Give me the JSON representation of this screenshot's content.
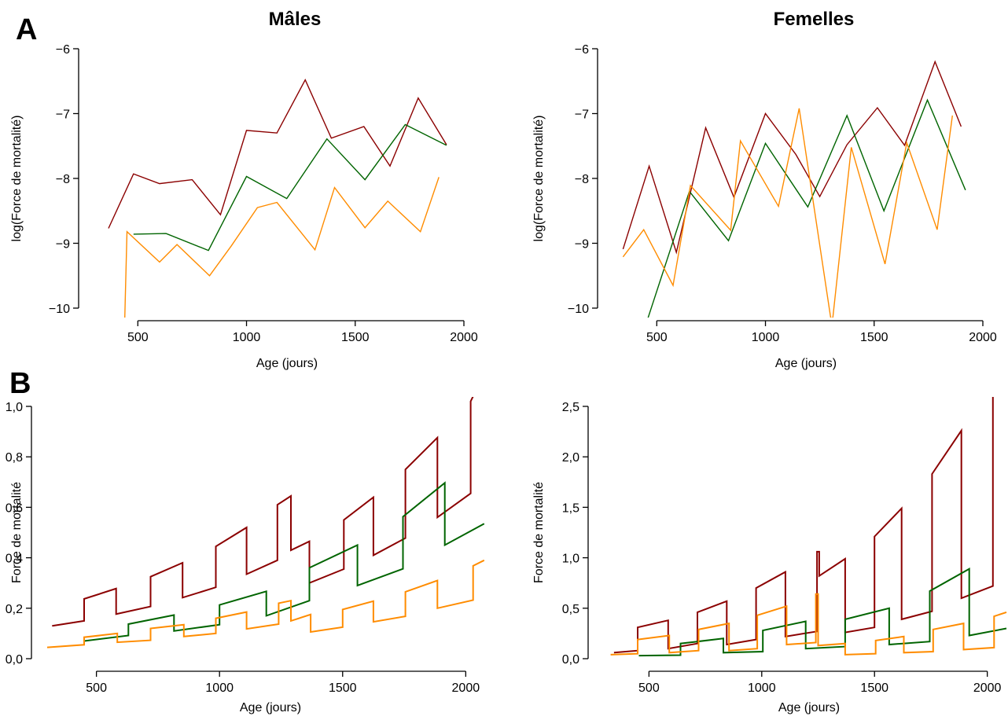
{
  "figure": {
    "column_titles": [
      "Mâles",
      "Femelles"
    ],
    "row_labels": [
      "A",
      "B"
    ]
  },
  "chart_data": [
    {
      "type": "line",
      "panel": "A",
      "title": "Mâles",
      "xlabel": "Age (jours)",
      "ylabel": "log(Force de mortalité)",
      "xlim": [
        300,
        2000
      ],
      "ylim": [
        -10,
        -6
      ],
      "xticks": [
        500,
        1000,
        1500,
        2000
      ],
      "yticks": [
        -10,
        -9,
        -8,
        -7,
        -6
      ],
      "series": [
        {
          "color": "#8B0000",
          "x": [
            365,
            480,
            600,
            750,
            880,
            1000,
            1140,
            1270,
            1390,
            1540,
            1660,
            1790,
            1920
          ],
          "y": [
            -8.77,
            -7.93,
            -8.08,
            -8.02,
            -8.56,
            -7.26,
            -7.3,
            -6.48,
            -7.38,
            -7.2,
            -7.81,
            -6.76,
            -7.48
          ]
        },
        {
          "color": "#006400",
          "x": [
            480,
            630,
            825,
            1000,
            1185,
            1370,
            1545,
            1730,
            1920
          ],
          "y": [
            -8.86,
            -8.85,
            -9.11,
            -7.97,
            -8.31,
            -7.39,
            -8.02,
            -7.17,
            -7.49
          ]
        },
        {
          "color": "#FF8C00",
          "x": [
            440,
            450,
            600,
            680,
            830,
            930,
            1050,
            1140,
            1315,
            1405,
            1545,
            1650,
            1800,
            1885
          ],
          "y": [
            -10.15,
            -8.82,
            -9.29,
            -9.02,
            -9.5,
            -9.04,
            -8.45,
            -8.37,
            -9.1,
            -8.14,
            -8.76,
            -8.35,
            -8.82,
            -7.98
          ]
        }
      ]
    },
    {
      "type": "line",
      "panel": "A",
      "title": "Femelles",
      "xlabel": "Age (jours)",
      "ylabel": "log(Force de mortalité)",
      "xlim": [
        300,
        2000
      ],
      "ylim": [
        -10,
        -6
      ],
      "xticks": [
        500,
        1000,
        1500,
        2000
      ],
      "yticks": [
        -10,
        -9,
        -8,
        -7,
        -6
      ],
      "series": [
        {
          "color": "#8B0000",
          "x": [
            345,
            465,
            590,
            725,
            855,
            1000,
            1140,
            1250,
            1375,
            1515,
            1640,
            1780,
            1900
          ],
          "y": [
            -9.09,
            -7.81,
            -9.14,
            -7.22,
            -8.29,
            -7.0,
            -7.63,
            -8.28,
            -7.48,
            -6.91,
            -7.49,
            -6.2,
            -7.2
          ]
        },
        {
          "color": "#006400",
          "x": [
            460,
            650,
            830,
            1000,
            1195,
            1375,
            1545,
            1745,
            1920
          ],
          "y": [
            -10.15,
            -8.2,
            -8.96,
            -7.46,
            -8.44,
            -7.03,
            -8.5,
            -6.79,
            -8.18
          ]
        },
        {
          "color": "#FF8C00",
          "x": [
            345,
            440,
            575,
            655,
            840,
            885,
            1060,
            1155,
            1300,
            1310,
            1395,
            1550,
            1650,
            1790,
            1860
          ],
          "y": [
            -9.21,
            -8.79,
            -9.65,
            -8.11,
            -8.8,
            -7.42,
            -8.43,
            -6.92,
            -10.15,
            -10.15,
            -7.52,
            -9.32,
            -7.45,
            -8.79,
            -7.03
          ]
        }
      ]
    },
    {
      "type": "line",
      "panel": "B",
      "title": "",
      "xlabel": "Age (jours)",
      "ylabel": "Force de mortalité",
      "xlim": [
        300,
        2050
      ],
      "ylim": [
        0,
        1.0
      ],
      "xticks": [
        500,
        1000,
        1500,
        2000
      ],
      "yticks": [
        0.0,
        0.2,
        0.4,
        0.6,
        0.8,
        1.0
      ],
      "ytick_labels": [
        "0,0",
        "0,2",
        "0,4",
        "0,6",
        "0,8",
        "1,0"
      ],
      "series": [
        {
          "color": "#8B0000",
          "x": [
            320,
            450,
            450,
            580,
            580,
            720,
            720,
            850,
            850,
            985,
            985,
            1110,
            1110,
            1235,
            1235,
            1290,
            1290,
            1365,
            1365,
            1505,
            1505,
            1625,
            1625,
            1755,
            1755,
            1885,
            1885,
            2020,
            2020,
            2030
          ],
          "y": [
            0.13,
            0.15,
            0.237,
            0.278,
            0.177,
            0.207,
            0.325,
            0.38,
            0.242,
            0.283,
            0.445,
            0.52,
            0.335,
            0.39,
            0.61,
            0.645,
            0.43,
            0.465,
            0.3,
            0.355,
            0.55,
            0.64,
            0.41,
            0.478,
            0.75,
            0.876,
            0.56,
            0.655,
            1.02,
            1.04
          ]
        },
        {
          "color": "#006400",
          "x": [
            450,
            630,
            630,
            815,
            815,
            1000,
            1000,
            1190,
            1190,
            1365,
            1365,
            1560,
            1560,
            1745,
            1745,
            1915,
            1915,
            2075
          ],
          "y": [
            0.07,
            0.092,
            0.137,
            0.173,
            0.11,
            0.135,
            0.213,
            0.267,
            0.17,
            0.23,
            0.36,
            0.45,
            0.29,
            0.356,
            0.563,
            0.697,
            0.45,
            0.535
          ]
        },
        {
          "color": "#FF8C00",
          "x": [
            300,
            450,
            450,
            585,
            585,
            720,
            720,
            855,
            855,
            985,
            985,
            1110,
            1110,
            1240,
            1240,
            1290,
            1290,
            1370,
            1370,
            1500,
            1500,
            1625,
            1625,
            1755,
            1755,
            1885,
            1885,
            2030,
            2030,
            2075
          ],
          "y": [
            0.045,
            0.055,
            0.085,
            0.1,
            0.065,
            0.073,
            0.12,
            0.135,
            0.088,
            0.1,
            0.16,
            0.185,
            0.118,
            0.137,
            0.22,
            0.23,
            0.15,
            0.175,
            0.106,
            0.125,
            0.195,
            0.228,
            0.146,
            0.168,
            0.265,
            0.31,
            0.2,
            0.232,
            0.368,
            0.39
          ]
        }
      ]
    },
    {
      "type": "line",
      "panel": "B",
      "title": "",
      "xlabel": "Age (jours)",
      "ylabel": "Force de mortalité",
      "xlim": [
        300,
        2050
      ],
      "ylim": [
        0,
        2.5
      ],
      "xticks": [
        500,
        1000,
        1500,
        2000
      ],
      "yticks": [
        0.0,
        0.5,
        1.0,
        1.5,
        2.0,
        2.5
      ],
      "ytick_labels": [
        "0,0",
        "0,5",
        "1,0",
        "1,5",
        "2,0",
        "2,5"
      ],
      "series": [
        {
          "color": "#8B0000",
          "x": [
            345,
            450,
            450,
            585,
            585,
            715,
            715,
            845,
            845,
            975,
            975,
            1105,
            1105,
            1245,
            1245,
            1255,
            1255,
            1370,
            1370,
            1500,
            1500,
            1620,
            1620,
            1755,
            1755,
            1885,
            1885,
            2025,
            2025,
            2050
          ],
          "y": [
            0.06,
            0.08,
            0.31,
            0.38,
            0.1,
            0.15,
            0.46,
            0.57,
            0.14,
            0.19,
            0.7,
            0.86,
            0.22,
            0.27,
            1.06,
            1.06,
            0.82,
            0.99,
            0.26,
            0.31,
            1.21,
            1.49,
            0.39,
            0.47,
            1.83,
            2.26,
            0.6,
            0.72,
            2.62,
            2.62
          ]
        },
        {
          "color": "#006400",
          "x": [
            455,
            640,
            640,
            830,
            830,
            1005,
            1005,
            1195,
            1195,
            1370,
            1370,
            1565,
            1565,
            1745,
            1745,
            1920,
            1920,
            2085
          ],
          "y": [
            0.03,
            0.035,
            0.15,
            0.2,
            0.06,
            0.07,
            0.28,
            0.37,
            0.1,
            0.12,
            0.39,
            0.5,
            0.14,
            0.17,
            0.67,
            0.89,
            0.23,
            0.3
          ]
        },
        {
          "color": "#FF8C00",
          "x": [
            330,
            450,
            450,
            590,
            590,
            720,
            720,
            855,
            855,
            980,
            980,
            1110,
            1110,
            1240,
            1240,
            1250,
            1250,
            1370,
            1370,
            1505,
            1505,
            1630,
            1630,
            1760,
            1760,
            1895,
            1895,
            2030,
            2030,
            2085
          ],
          "y": [
            0.04,
            0.05,
            0.19,
            0.23,
            0.06,
            0.08,
            0.29,
            0.35,
            0.08,
            0.1,
            0.43,
            0.52,
            0.14,
            0.16,
            0.64,
            0.64,
            0.13,
            0.15,
            0.04,
            0.05,
            0.18,
            0.22,
            0.06,
            0.07,
            0.29,
            0.35,
            0.09,
            0.11,
            0.42,
            0.46
          ]
        }
      ]
    }
  ]
}
